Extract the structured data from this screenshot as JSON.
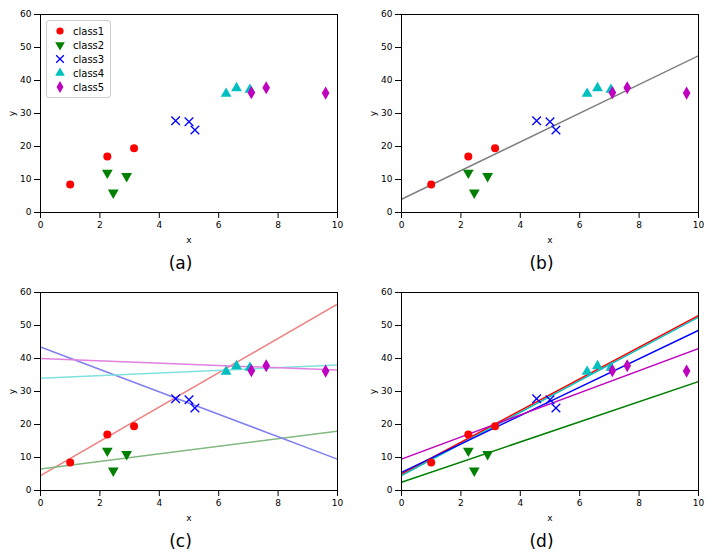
{
  "chart_data": [
    {
      "type": "scatter",
      "title": "(a)",
      "xlabel": "x",
      "ylabel": "y",
      "xlim": [
        0,
        10
      ],
      "ylim": [
        0,
        60
      ],
      "xticks": [
        0,
        2,
        4,
        6,
        8,
        10
      ],
      "yticks": [
        0,
        10,
        20,
        30,
        40,
        50,
        60
      ],
      "legend": "upper left",
      "series": [
        {
          "name": "class1",
          "color": "#ff0000",
          "marker": "circle",
          "x": [
            1.0,
            2.25,
            3.15
          ],
          "values": [
            8.5,
            17,
            19.5
          ]
        },
        {
          "name": "class2",
          "color": "#008000",
          "marker": "triangle-down",
          "x": [
            2.25,
            2.45,
            2.9
          ],
          "values": [
            12,
            6,
            11
          ]
        },
        {
          "name": "class3",
          "color": "#0000ff",
          "marker": "x",
          "x": [
            4.55,
            5.0,
            5.2
          ],
          "values": [
            27.8,
            27.5,
            25
          ]
        },
        {
          "name": "class4",
          "color": "#00bfbf",
          "marker": "triangle",
          "x": [
            6.25,
            6.6,
            7.05
          ],
          "values": [
            36,
            37.7,
            37.2
          ]
        },
        {
          "name": "class5",
          "color": "#bf00bf",
          "marker": "diamond",
          "x": [
            7.1,
            7.6,
            9.6
          ],
          "values": [
            36.3,
            37.8,
            36.2
          ]
        }
      ]
    },
    {
      "type": "scatter",
      "title": "(b)",
      "xlabel": "x",
      "ylabel": "y",
      "xlim": [
        0,
        10
      ],
      "ylim": [
        0,
        60
      ],
      "xticks": [
        0,
        2,
        4,
        6,
        8,
        10
      ],
      "yticks": [
        0,
        10,
        20,
        30,
        40,
        50,
        60
      ],
      "series": [
        {
          "type": "line",
          "color": "#808080",
          "x": [
            0,
            10
          ],
          "values": [
            4,
            47.5
          ]
        },
        {
          "color": "#ff0000",
          "marker": "circle",
          "x": [
            1.0,
            2.25,
            3.15
          ],
          "values": [
            8.5,
            17,
            19.5
          ]
        },
        {
          "color": "#008000",
          "marker": "triangle-down",
          "x": [
            2.25,
            2.45,
            2.9
          ],
          "values": [
            12,
            6,
            11
          ]
        },
        {
          "color": "#0000ff",
          "marker": "x",
          "x": [
            4.55,
            5.0,
            5.2
          ],
          "values": [
            27.8,
            27.5,
            25
          ]
        },
        {
          "color": "#00bfbf",
          "marker": "triangle",
          "x": [
            6.25,
            6.6,
            7.05
          ],
          "values": [
            36,
            37.7,
            37.2
          ]
        },
        {
          "color": "#bf00bf",
          "marker": "diamond",
          "x": [
            7.1,
            7.6,
            9.6
          ],
          "values": [
            36.3,
            37.8,
            36.2
          ]
        }
      ]
    },
    {
      "type": "scatter",
      "title": "(c)",
      "xlabel": "x",
      "ylabel": "y",
      "xlim": [
        0,
        10
      ],
      "ylim": [
        0,
        60
      ],
      "xticks": [
        0,
        2,
        4,
        6,
        8,
        10
      ],
      "yticks": [
        0,
        10,
        20,
        30,
        40,
        50,
        60
      ],
      "series": [
        {
          "type": "line",
          "color": "#f08080",
          "x": [
            0,
            10
          ],
          "values": [
            4.5,
            56.5
          ]
        },
        {
          "type": "line",
          "color": "#80b880",
          "x": [
            0,
            10
          ],
          "values": [
            6.5,
            18
          ]
        },
        {
          "type": "line",
          "color": "#8080f0",
          "x": [
            0,
            10
          ],
          "values": [
            43.5,
            9.5
          ]
        },
        {
          "type": "line",
          "color": "#80e0e0",
          "x": [
            0,
            10
          ],
          "values": [
            34,
            38
          ]
        },
        {
          "type": "line",
          "color": "#e080e0",
          "x": [
            0,
            10
          ],
          "values": [
            40,
            36.5
          ]
        },
        {
          "color": "#ff0000",
          "marker": "circle",
          "x": [
            1.0,
            2.25,
            3.15
          ],
          "values": [
            8.5,
            17,
            19.5
          ]
        },
        {
          "color": "#008000",
          "marker": "triangle-down",
          "x": [
            2.25,
            2.45,
            2.9
          ],
          "values": [
            12,
            6,
            11
          ]
        },
        {
          "color": "#0000ff",
          "marker": "x",
          "x": [
            4.55,
            5.0,
            5.2
          ],
          "values": [
            27.8,
            27.5,
            25
          ]
        },
        {
          "color": "#00bfbf",
          "marker": "triangle",
          "x": [
            6.25,
            6.6,
            7.05
          ],
          "values": [
            36,
            37.7,
            37.2
          ]
        },
        {
          "color": "#bf00bf",
          "marker": "diamond",
          "x": [
            7.1,
            7.6,
            9.6
          ],
          "values": [
            36.3,
            37.8,
            36.2
          ]
        }
      ]
    },
    {
      "type": "scatter",
      "title": "(d)",
      "xlabel": "x",
      "ylabel": "y",
      "xlim": [
        0,
        10
      ],
      "ylim": [
        0,
        60
      ],
      "xticks": [
        0,
        2,
        4,
        6,
        8,
        10
      ],
      "yticks": [
        0,
        10,
        20,
        30,
        40,
        50,
        60
      ],
      "series": [
        {
          "type": "line",
          "color": "#ff0000",
          "x": [
            0,
            10
          ],
          "values": [
            5,
            53
          ]
        },
        {
          "type": "line",
          "color": "#00bfbf",
          "x": [
            0,
            10
          ],
          "values": [
            4.5,
            52.5
          ]
        },
        {
          "type": "line",
          "color": "#0000ff",
          "x": [
            0,
            10
          ],
          "values": [
            5.5,
            48.5
          ]
        },
        {
          "type": "line",
          "color": "#bf00bf",
          "x": [
            0,
            10
          ],
          "values": [
            9.5,
            43
          ]
        },
        {
          "type": "line",
          "color": "#008000",
          "x": [
            0,
            10
          ],
          "values": [
            2.5,
            33
          ]
        },
        {
          "color": "#ff0000",
          "marker": "circle",
          "x": [
            1.0,
            2.25,
            3.15
          ],
          "values": [
            8.5,
            17,
            19.5
          ]
        },
        {
          "color": "#008000",
          "marker": "triangle-down",
          "x": [
            2.25,
            2.45,
            2.9
          ],
          "values": [
            12,
            6,
            11
          ]
        },
        {
          "color": "#0000ff",
          "marker": "x",
          "x": [
            4.55,
            5.0,
            5.2
          ],
          "values": [
            27.8,
            27.5,
            25
          ]
        },
        {
          "color": "#00bfbf",
          "marker": "triangle",
          "x": [
            6.25,
            6.6,
            7.05
          ],
          "values": [
            36,
            37.7,
            37.2
          ]
        },
        {
          "color": "#bf00bf",
          "marker": "diamond",
          "x": [
            7.1,
            7.6,
            9.6
          ],
          "values": [
            36.3,
            37.8,
            36.2
          ]
        }
      ]
    }
  ]
}
